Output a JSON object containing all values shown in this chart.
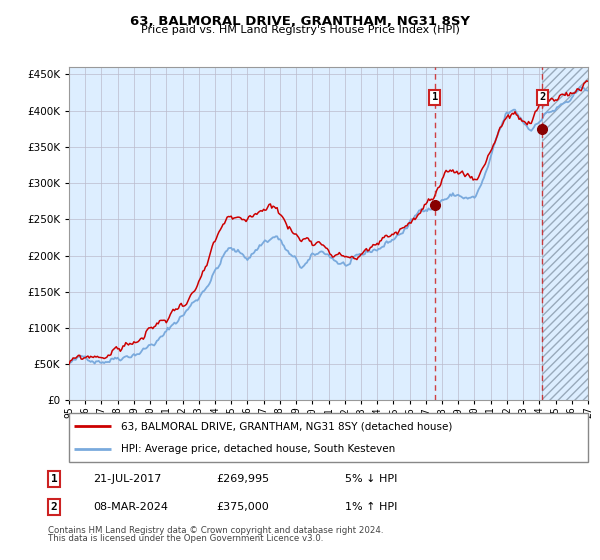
{
  "title": "63, BALMORAL DRIVE, GRANTHAM, NG31 8SY",
  "subtitle": "Price paid vs. HM Land Registry's House Price Index (HPI)",
  "legend_line1": "63, BALMORAL DRIVE, GRANTHAM, NG31 8SY (detached house)",
  "legend_line2": "HPI: Average price, detached house, South Kesteven",
  "annotation1_date": "21-JUL-2017",
  "annotation1_price": "£269,995",
  "annotation1_hpi": "5% ↓ HPI",
  "annotation2_date": "08-MAR-2024",
  "annotation2_price": "£375,000",
  "annotation2_hpi": "1% ↑ HPI",
  "footnote1": "Contains HM Land Registry data © Crown copyright and database right 2024.",
  "footnote2": "This data is licensed under the Open Government Licence v3.0.",
  "hpi_color": "#7aaadd",
  "price_color": "#cc0000",
  "marker_color": "#880000",
  "bg_color": "#ddeeff",
  "grid_color": "#bbbbcc",
  "ylim": [
    0,
    460000
  ],
  "ytick_vals": [
    0,
    50000,
    100000,
    150000,
    200000,
    250000,
    300000,
    350000,
    400000,
    450000
  ],
  "sale1_x": 2017.55,
  "sale1_y": 269995,
  "sale2_x": 2024.18,
  "sale2_y": 375000,
  "xmin": 1995.0,
  "xmax": 2027.0,
  "future_start": 2024.18,
  "hpi_waypoints_x": [
    1995.0,
    1996.0,
    1997.0,
    1998.0,
    1999.0,
    2000.0,
    2001.0,
    2002.0,
    2003.0,
    2004.0,
    2004.8,
    2005.5,
    2006.0,
    2007.0,
    2007.8,
    2008.5,
    2009.3,
    2010.0,
    2010.8,
    2011.5,
    2012.0,
    2013.0,
    2014.0,
    2015.0,
    2016.0,
    2017.0,
    2017.5,
    2018.0,
    2018.5,
    2019.0,
    2020.0,
    2020.5,
    2021.0,
    2021.5,
    2022.0,
    2022.5,
    2023.0,
    2023.5,
    2024.0,
    2024.5,
    2025.0,
    2026.0,
    2027.0
  ],
  "hpi_waypoints_y": [
    52000,
    55000,
    60000,
    70000,
    82000,
    95000,
    110000,
    135000,
    160000,
    200000,
    230000,
    220000,
    215000,
    240000,
    250000,
    225000,
    200000,
    210000,
    215000,
    205000,
    200000,
    200000,
    210000,
    225000,
    245000,
    270000,
    275000,
    285000,
    290000,
    290000,
    285000,
    305000,
    335000,
    365000,
    390000,
    390000,
    375000,
    365000,
    385000,
    395000,
    400000,
    410000,
    420000
  ],
  "price_waypoints_x": [
    1995.0,
    1996.0,
    1997.0,
    1998.0,
    1999.0,
    2000.0,
    2001.0,
    2002.0,
    2003.0,
    2004.0,
    2004.8,
    2005.5,
    2006.0,
    2007.0,
    2007.8,
    2008.5,
    2009.3,
    2010.0,
    2010.8,
    2011.5,
    2012.0,
    2013.0,
    2014.0,
    2015.0,
    2016.0,
    2017.0,
    2017.5,
    2018.0,
    2018.5,
    2019.0,
    2020.0,
    2020.5,
    2021.0,
    2021.5,
    2022.0,
    2022.5,
    2023.0,
    2023.5,
    2024.0,
    2024.5,
    2025.0,
    2026.0,
    2027.0
  ],
  "price_waypoints_y": [
    50000,
    52000,
    57000,
    67000,
    78000,
    90000,
    105000,
    128000,
    155000,
    195000,
    225000,
    210000,
    205000,
    228000,
    238000,
    210000,
    190000,
    198000,
    200000,
    193000,
    190000,
    192000,
    200000,
    215000,
    232000,
    258000,
    262000,
    272000,
    276000,
    278000,
    272000,
    290000,
    318000,
    348000,
    370000,
    368000,
    355000,
    348000,
    368000,
    375000,
    380000,
    392000,
    400000
  ]
}
